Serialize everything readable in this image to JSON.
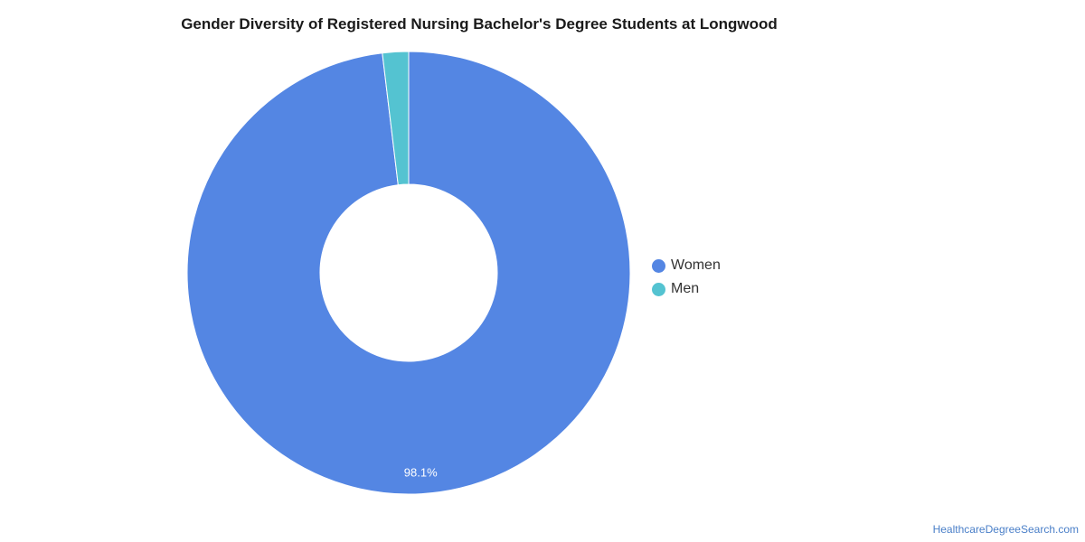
{
  "chart_data": {
    "type": "pie",
    "donut": true,
    "title": "Gender Diversity of Registered Nursing Bachelor's Degree Students at Longwood",
    "categories": [
      "Women",
      "Men"
    ],
    "values": [
      98.1,
      1.9
    ],
    "colors": [
      "#5486e3",
      "#54c3d1"
    ],
    "data_labels": [
      "98.1%",
      ""
    ],
    "legend": {
      "placement": "right",
      "entries": [
        "Women",
        "Men"
      ]
    }
  },
  "source": "HealthcareDegreeSearch.com"
}
